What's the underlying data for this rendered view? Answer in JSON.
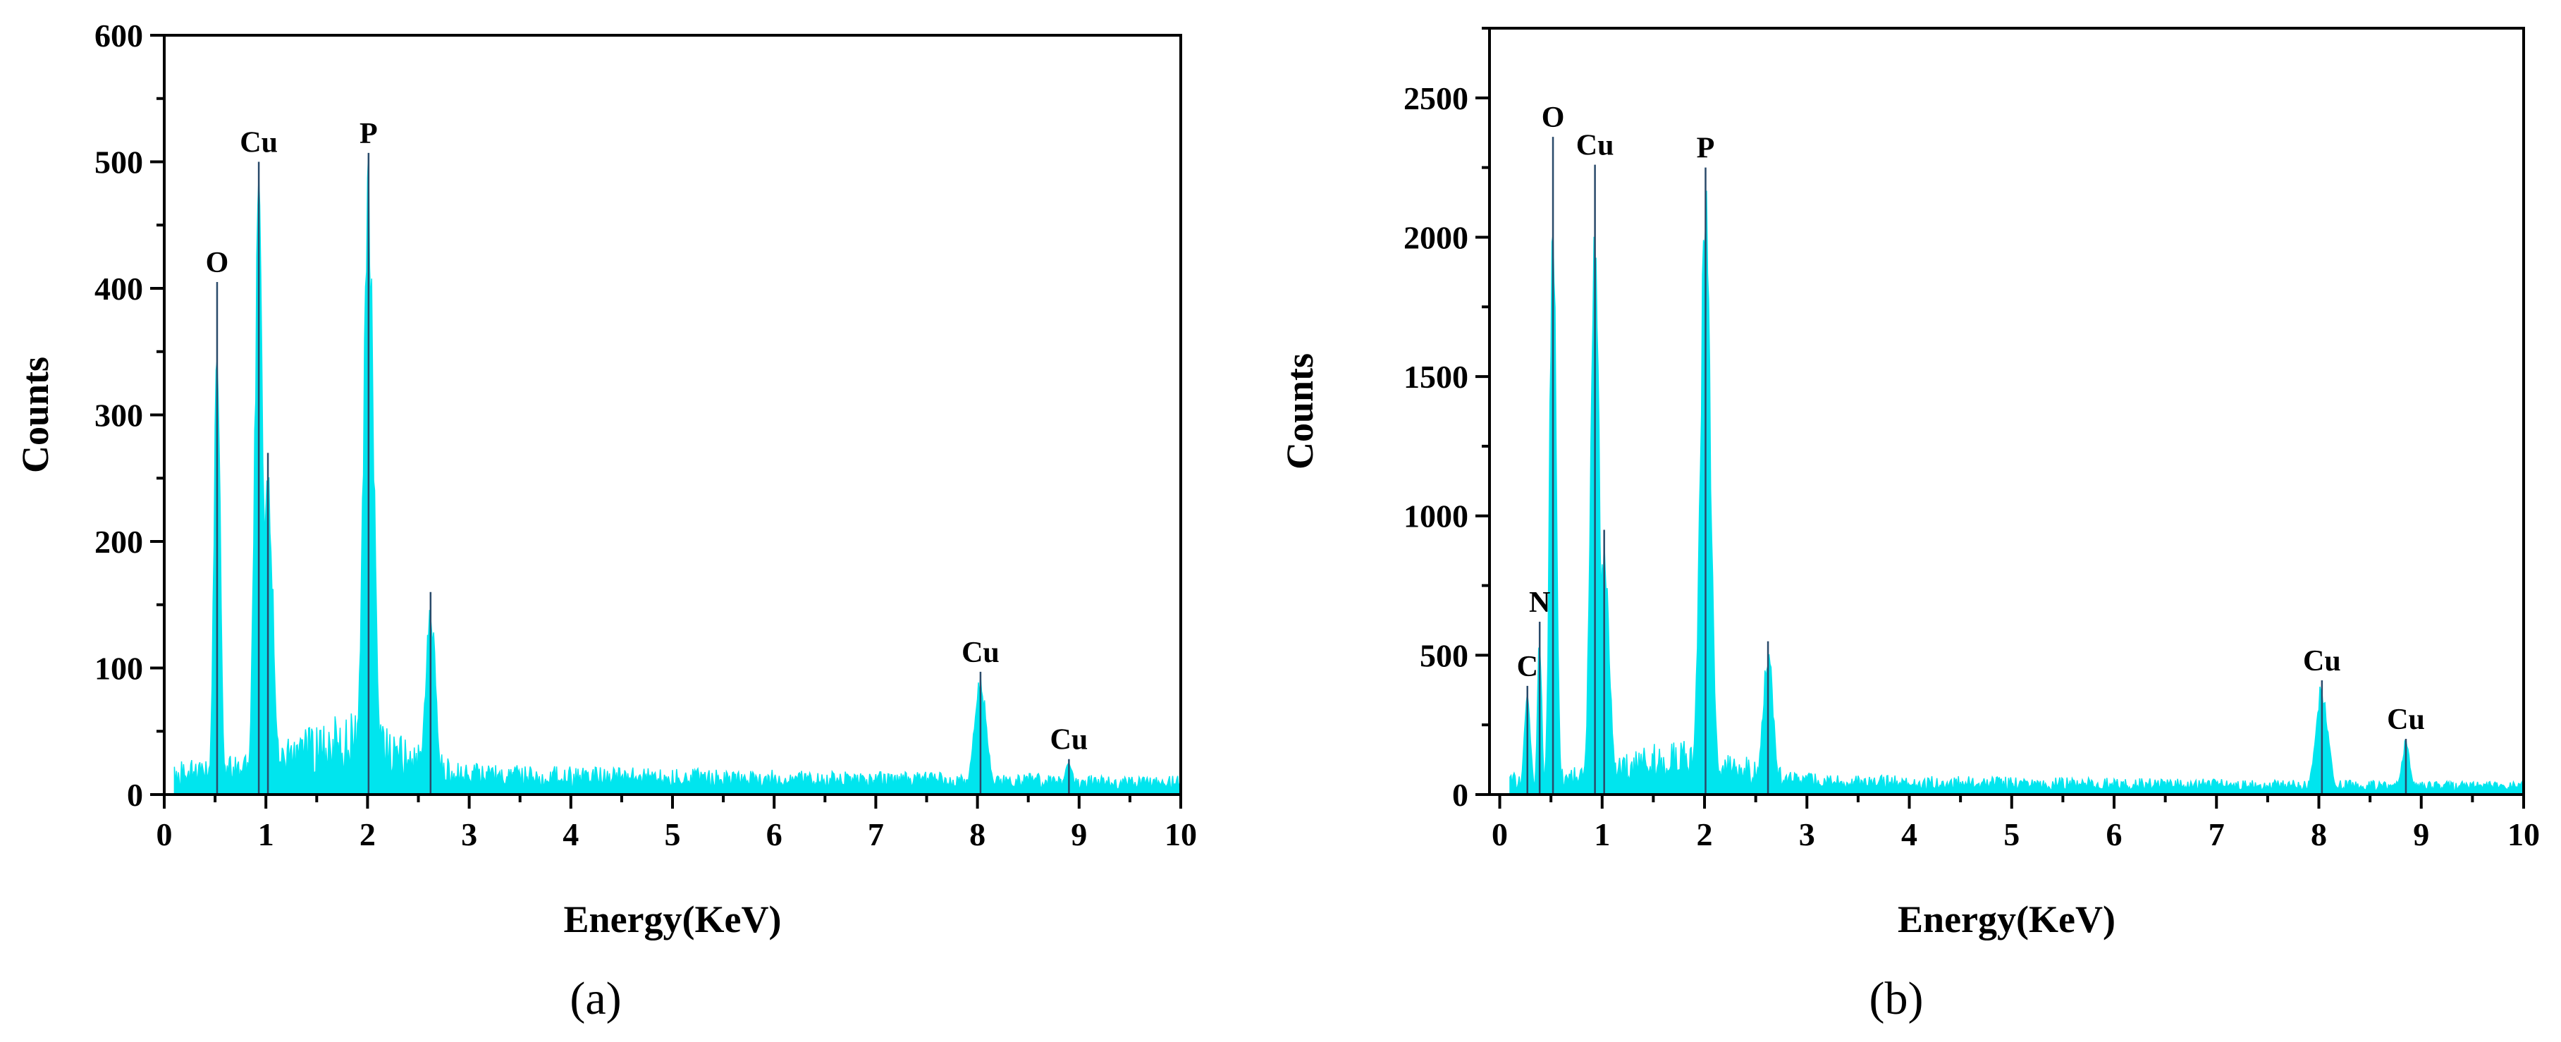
{
  "chart_data": [
    {
      "type": "area",
      "panel_label": "(a)",
      "xlabel": "Energy(KeV)",
      "ylabel": "Counts",
      "xlim": [
        0,
        10
      ],
      "ylim": [
        0,
        600
      ],
      "xticks": [
        "0",
        "1",
        "2",
        "3",
        "4",
        "5",
        "6",
        "7",
        "8",
        "9",
        "10"
      ],
      "yticks": [
        "0",
        "100",
        "200",
        "300",
        "400",
        "500",
        "600"
      ],
      "color": "#00e5ee",
      "baseline": 18,
      "peaks": [
        {
          "label": "O",
          "x": 0.52,
          "y": 405,
          "width": 0.03
        },
        {
          "label": "Cu",
          "x": 0.93,
          "y": 500,
          "width": 0.04
        },
        {
          "label": "",
          "x": 1.02,
          "y": 270,
          "width": 0.05
        },
        {
          "label": "P",
          "x": 2.01,
          "y": 507,
          "width": 0.05
        },
        {
          "label": "",
          "x": 2.62,
          "y": 160,
          "width": 0.05
        },
        {
          "label": "Cu",
          "x": 8.03,
          "y": 97,
          "width": 0.06
        },
        {
          "label": "Cu",
          "x": 8.9,
          "y": 28,
          "width": 0.04
        }
      ]
    },
    {
      "type": "area",
      "panel_label": "(b)",
      "xlabel": "Energy(KeV)",
      "ylabel": "Counts",
      "xlim": [
        -0.1,
        10
      ],
      "ylim": [
        0,
        2750
      ],
      "xticks": [
        "0",
        "1",
        "2",
        "3",
        "4",
        "5",
        "6",
        "7",
        "8",
        "9",
        "10"
      ],
      "yticks": [
        "0",
        "500",
        "1000",
        "1500",
        "2000",
        "2500"
      ],
      "color": "#00e5ee",
      "baseline": 55,
      "peaks": [
        {
          "label": "C",
          "x": 0.27,
          "y": 390,
          "width": 0.03
        },
        {
          "label": "N",
          "x": 0.39,
          "y": 620,
          "width": 0.02
        },
        {
          "label": "O",
          "x": 0.52,
          "y": 2360,
          "width": 0.03
        },
        {
          "label": "Cu",
          "x": 0.93,
          "y": 2260,
          "width": 0.04
        },
        {
          "label": "",
          "x": 1.02,
          "y": 950,
          "width": 0.05
        },
        {
          "label": "P",
          "x": 2.01,
          "y": 2250,
          "width": 0.05
        },
        {
          "label": "",
          "x": 2.62,
          "y": 550,
          "width": 0.05
        },
        {
          "label": "Cu",
          "x": 8.03,
          "y": 410,
          "width": 0.06
        },
        {
          "label": "Cu",
          "x": 8.85,
          "y": 200,
          "width": 0.04
        }
      ]
    }
  ]
}
